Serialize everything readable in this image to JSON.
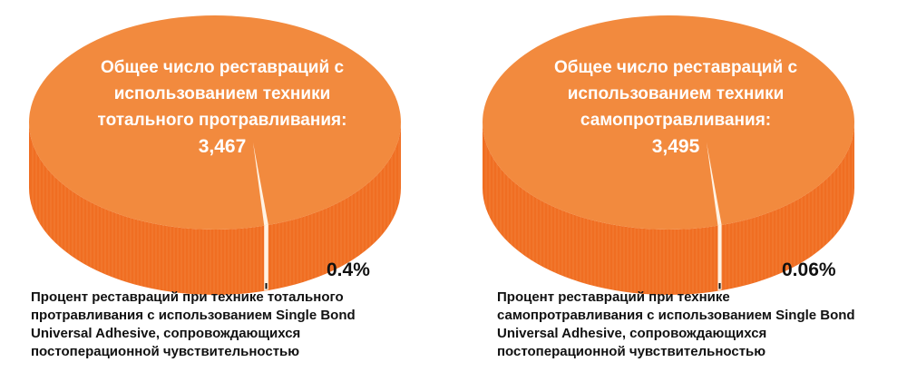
{
  "colors": {
    "pie_top": "#F28A3E",
    "pie_side": "#F06E22",
    "slice_gap": "#FFF3E4",
    "leader_line": "#111111"
  },
  "chart_data": [
    {
      "type": "pie",
      "label": "Общее число реставраций с использованием техники тотального протравливания:",
      "total": "3,467",
      "slices": [
        {
          "value": 99.6
        },
        {
          "value": 0.4
        }
      ],
      "highlight_percent": "0.4%",
      "caption": "Процент реставраций при технике тотального протравливания с использованием Single Bond Universal Adhesive, сопровождающихся постоперационной чувствительностью"
    },
    {
      "type": "pie",
      "label": "Общее число реставраций с использованием техники самопротравливания:",
      "total": "3,495",
      "slices": [
        {
          "value": 99.94
        },
        {
          "value": 0.06
        }
      ],
      "highlight_percent": "0.06%",
      "caption": "Процент реставраций при технике самопротравливания с использованием Single Bond Universal Adhesive, сопровождающихся постоперационной чувствительностью"
    }
  ]
}
